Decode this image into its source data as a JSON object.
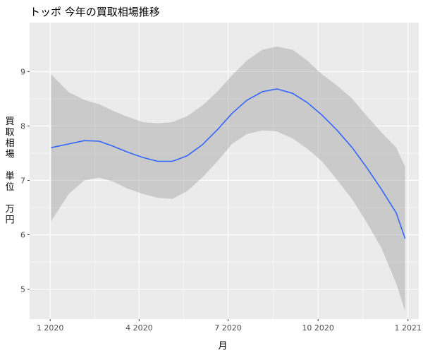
{
  "chart_data": {
    "type": "line",
    "title": "トッポ 今年の買取相場推移",
    "xlabel": "月",
    "ylabel_chars": [
      "買",
      "取",
      "相",
      "場",
      "",
      "単",
      "位",
      "",
      "万",
      "円"
    ],
    "x_tick_labels": [
      "1 2020",
      "4 2020",
      "7 2020",
      "10 2020",
      "1 2021"
    ],
    "x_tick_dates": [
      "2020-01-01",
      "2020-04-01",
      "2020-07-01",
      "2020-10-01",
      "2021-01-01"
    ],
    "x_range": [
      "2019-12-11",
      "2021-01-12"
    ],
    "y_ticks": [
      5,
      6,
      7,
      8,
      9
    ],
    "y_range": [
      4.45,
      9.9
    ],
    "grid": true,
    "series": [
      {
        "x": [
          "2020-01-02",
          "2020-01-20",
          "2020-02-05",
          "2020-02-20",
          "2020-03-05",
          "2020-03-20",
          "2020-04-05",
          "2020-04-20",
          "2020-05-05",
          "2020-05-20",
          "2020-06-05",
          "2020-06-20",
          "2020-07-05",
          "2020-07-20",
          "2020-08-05",
          "2020-08-20",
          "2020-09-05",
          "2020-09-20",
          "2020-10-05",
          "2020-10-20",
          "2020-11-05",
          "2020-11-20",
          "2020-12-05",
          "2020-12-20",
          "2020-12-29"
        ],
        "values": [
          7.6,
          7.67,
          7.73,
          7.72,
          7.63,
          7.52,
          7.42,
          7.35,
          7.35,
          7.45,
          7.66,
          7.93,
          8.23,
          8.47,
          8.63,
          8.68,
          8.6,
          8.43,
          8.2,
          7.93,
          7.6,
          7.23,
          6.83,
          6.4,
          5.93
        ],
        "ci_lower": [
          6.25,
          6.75,
          7.0,
          7.05,
          6.98,
          6.85,
          6.75,
          6.68,
          6.66,
          6.8,
          7.06,
          7.35,
          7.67,
          7.85,
          7.92,
          7.9,
          7.77,
          7.58,
          7.35,
          7.02,
          6.65,
          6.22,
          5.75,
          5.1,
          4.6
        ],
        "ci_upper": [
          8.95,
          8.62,
          8.48,
          8.4,
          8.28,
          8.17,
          8.07,
          8.05,
          8.07,
          8.18,
          8.38,
          8.63,
          8.93,
          9.2,
          9.4,
          9.46,
          9.4,
          9.2,
          8.95,
          8.75,
          8.5,
          8.18,
          7.88,
          7.6,
          7.25
        ]
      }
    ],
    "colors": {
      "panel": "#ebebeb",
      "grid": "#ffffff",
      "line": "#3366ff",
      "ribbon": "#999999"
    }
  }
}
